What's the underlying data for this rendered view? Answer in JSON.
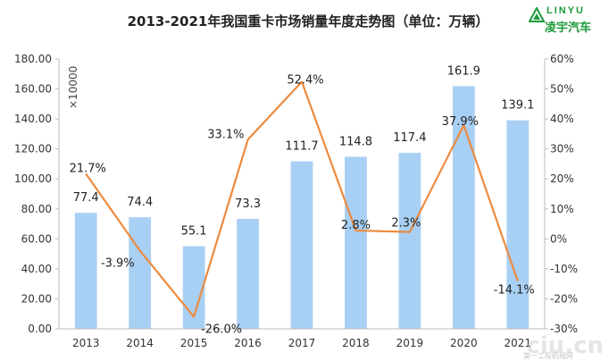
{
  "title": "2013-2021年我国重卡市场销量年度走势图（单位：万辆）",
  "logo": {
    "brand": "LINYU",
    "name": "凌宇汽车"
  },
  "watermark": {
    "main": "ciu.cn",
    "sub": "第一工程机械网"
  },
  "chart_data": {
    "type": "bar",
    "title": "2013-2021年我国重卡市场销量年度走势图（单位：万辆）",
    "categories": [
      "2013",
      "2014",
      "2015",
      "2016",
      "2017",
      "2018",
      "2019",
      "2020",
      "2021"
    ],
    "series": [
      {
        "values": [
          77.4,
          74.4,
          55.1,
          73.3,
          111.7,
          114.8,
          117.4,
          161.9,
          139.1
        ],
        "labels": [
          "77.4",
          "74.4",
          "55.1",
          "73.3",
          "111.7",
          "114.8",
          "117.4",
          "161.9",
          "139.1"
        ],
        "color": "#a8d0f4",
        "axis": "left"
      },
      {
        "type": "line",
        "values": [
          21.7,
          -3.9,
          -26.0,
          33.1,
          52.4,
          2.8,
          2.3,
          37.9,
          -14.1
        ],
        "labels": [
          "21.7%",
          "-3.9%",
          "-26.0%",
          "33.1%",
          "52.4%",
          "2.8%",
          "2.3%",
          "37.9%",
          "-14.1%"
        ],
        "color": "#ed8b3f",
        "axis": "right"
      }
    ],
    "left_axis": {
      "ylim": [
        0,
        180
      ],
      "ticks": [
        "0.00",
        "20.00",
        "40.00",
        "60.00",
        "80.00",
        "100.00",
        "120.00",
        "140.00",
        "160.00",
        "180.00"
      ],
      "unit_label": "×10000"
    },
    "right_axis": {
      "ylim": [
        -30,
        60
      ],
      "ticks": [
        "-30%",
        "-20%",
        "-10%",
        "0%",
        "10%",
        "20%",
        "30%",
        "40%",
        "50%",
        "60%"
      ]
    },
    "grid": false,
    "legend": "none"
  }
}
